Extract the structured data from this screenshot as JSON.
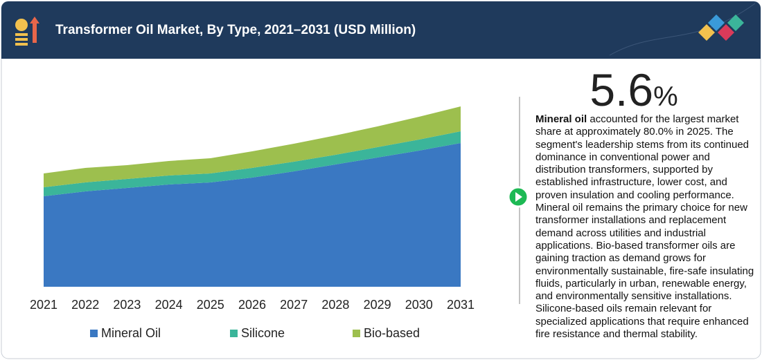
{
  "chart_data": {
    "type": "area",
    "stacked": true,
    "title": "Transformer Oil Market, By Type, 2021–2031 (USD Million)",
    "categories": [
      "2021",
      "2022",
      "2023",
      "2024",
      "2025",
      "2026",
      "2027",
      "2028",
      "2029",
      "2030",
      "2031"
    ],
    "series": [
      {
        "name": "Mineral Oil",
        "color": "#3a78c2",
        "values": [
          131,
          138,
          143,
          148,
          151,
          158,
          167,
          177,
          187,
          197,
          208
        ]
      },
      {
        "name": "Silicone",
        "color": "#3bb59a",
        "values": [
          13,
          13,
          13,
          13,
          13,
          14,
          14,
          14,
          15,
          16,
          17
        ]
      },
      {
        "name": "Bio-based",
        "color": "#9dbf4e",
        "values": [
          20,
          21,
          20,
          21,
          22,
          24,
          26,
          28,
          30,
          33,
          36
        ]
      }
    ],
    "ylim": [
      0,
      315
    ]
  },
  "insight": {
    "stat_value": "5.6",
    "stat_unit": "%",
    "lead": "Mineral oil",
    "text": " accounted for the largest market share at approximately 80.0% in 2025. The segment's leadership stems from its continued dominance in conventional power and distribution transformers, supported by established infrastructure, lower cost, and proven insulation and cooling performance. Mineral oil remains the primary choice for new transformer installations and replacement demand across utilities and industrial applications. Bio-based transformer oils are gaining traction as demand grows for environmentally sustainable, fire-safe insulating fluids, particularly in urban, renewable energy, and environmentally sensitive installations. Silicone-based oils remain relevant for specialized applications that require enhanced fire resistance and thermal stability."
  }
}
